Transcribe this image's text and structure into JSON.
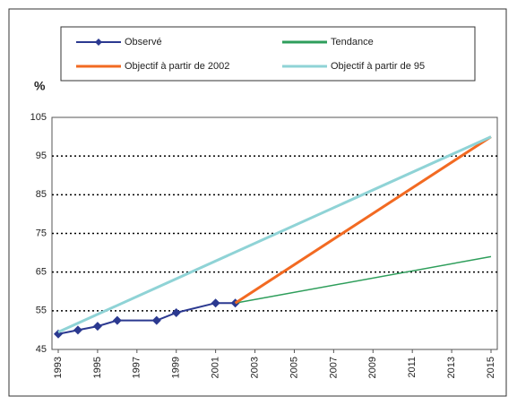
{
  "chart_data": {
    "type": "line",
    "ylabel": "%",
    "xlim": [
      1993,
      2015
    ],
    "ylim": [
      45,
      105
    ],
    "yticks": [
      45,
      55,
      65,
      75,
      85,
      95,
      105
    ],
    "xticks": [
      1993,
      1995,
      1997,
      1999,
      2001,
      2003,
      2005,
      2007,
      2009,
      2011,
      2013,
      2015
    ],
    "grid": true,
    "series": [
      {
        "name": "Observé",
        "color": "#2b3990",
        "markers": true,
        "x": [
          1993,
          1994,
          1995,
          1996,
          1998,
          1999,
          2001,
          2002
        ],
        "values": [
          49,
          50,
          51,
          52.5,
          52.5,
          54.5,
          57,
          57
        ]
      },
      {
        "name": "Tendance",
        "color": "#2e9e5b",
        "markers": false,
        "x": [
          2002,
          2015
        ],
        "values": [
          57,
          69
        ]
      },
      {
        "name": "Objectif à partir de 2002",
        "color": "#f26a22",
        "markers": false,
        "x": [
          2002,
          2015
        ],
        "values": [
          57,
          100
        ]
      },
      {
        "name": "Objectif à partir de 95",
        "color": "#8fd3d6",
        "markers": false,
        "x": [
          1993,
          2015
        ],
        "values": [
          49.5,
          100
        ]
      }
    ]
  }
}
